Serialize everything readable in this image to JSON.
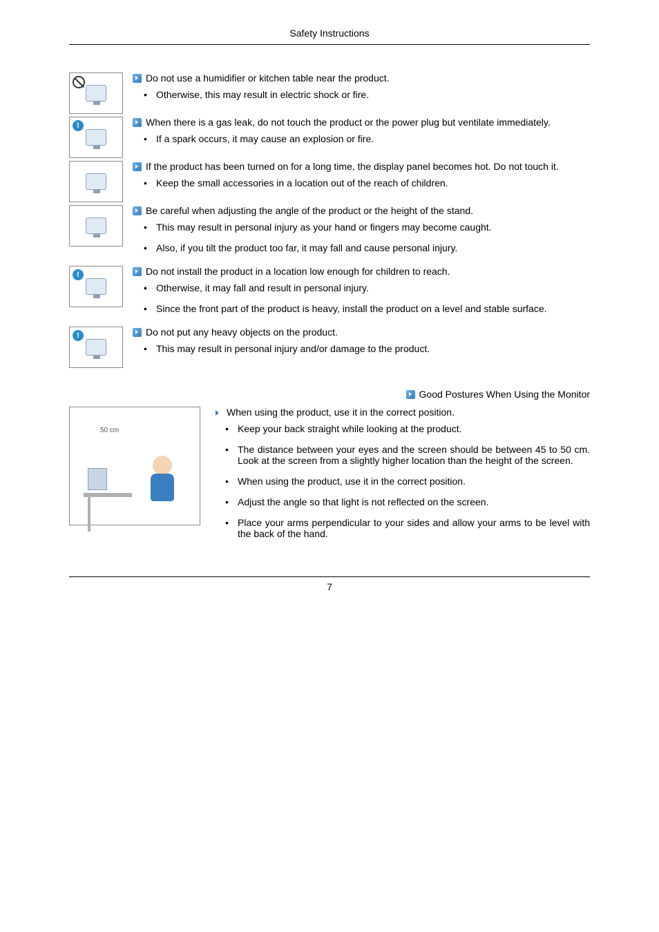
{
  "header": {
    "title": "Safety Instructions"
  },
  "items": [
    {
      "icon": {
        "badge": "prohibit"
      },
      "heading": "Do not use a humidifier or kitchen table near the product.",
      "subs": [
        "Otherwise, this may result in electric shock or fire."
      ]
    },
    {
      "icon": {
        "badge": "info"
      },
      "heading": "When there is a gas leak, do not touch the product or the power plug but ventilate immediately.",
      "subs": [
        "If a spark occurs, it may cause an explosion or fire."
      ]
    },
    {
      "icon": {
        "badge": "none"
      },
      "heading": "If the product has been turned on for a long time, the display panel becomes hot. Do not touch it.",
      "subs": [
        "Keep the small accessories in a location out of the reach of children."
      ]
    },
    {
      "icon": {
        "badge": "none"
      },
      "heading": "Be careful when adjusting the angle of the product or the height of the stand.",
      "subs": [
        "This may result in personal injury as your hand or fingers may become caught.",
        "Also, if you tilt the product too far, it may fall and cause personal injury."
      ]
    },
    {
      "icon": {
        "badge": "info"
      },
      "heading": "Do not install the product in a location low enough for children to reach.",
      "subs": [
        "Otherwise, it may fall and result in personal injury.",
        "Since the front part of the product is heavy, install the product on a level and stable surface."
      ]
    },
    {
      "icon": {
        "badge": "info"
      },
      "heading": "Do not put any heavy objects on the product.",
      "subs": [
        "This may result in personal injury and/or damage to the product."
      ]
    }
  ],
  "posture": {
    "title": "Good Postures When Using the Monitor",
    "intro": "When using the product, use it in the correct position.",
    "distance_label": "50 cm",
    "subs": [
      "Keep your back straight while looking at the product.",
      "The distance between your eyes and the screen should be between 45 to 50 cm. Look at the screen from a slightly higher location than the height of the screen.",
      "When using the product, use it in the correct position.",
      "Adjust the angle so that light is not reflected on the screen.",
      "Place your arms perpendicular to your sides and allow your arms to be level with the back of the hand."
    ]
  },
  "footer": {
    "page": "7"
  }
}
